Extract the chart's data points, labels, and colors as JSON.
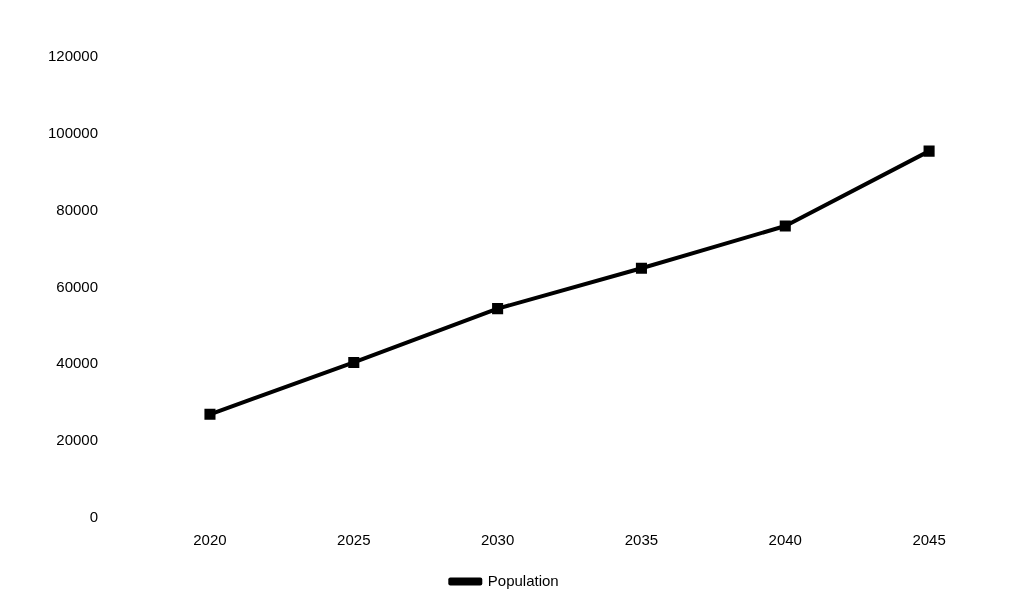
{
  "chart_data": {
    "type": "line",
    "categories": [
      "2020",
      "2025",
      "2030",
      "2035",
      "2040",
      "2045"
    ],
    "series": [
      {
        "name": "Population",
        "color": "#000000",
        "values": [
          27000,
          40500,
          54500,
          65000,
          76000,
          95500
        ]
      }
    ],
    "ylim": [
      0,
      120000
    ],
    "yticks": [
      0,
      20000,
      40000,
      60000,
      80000,
      100000,
      120000
    ],
    "grid": false,
    "legend": "bottom",
    "marker": "square",
    "line_style": "solid"
  }
}
